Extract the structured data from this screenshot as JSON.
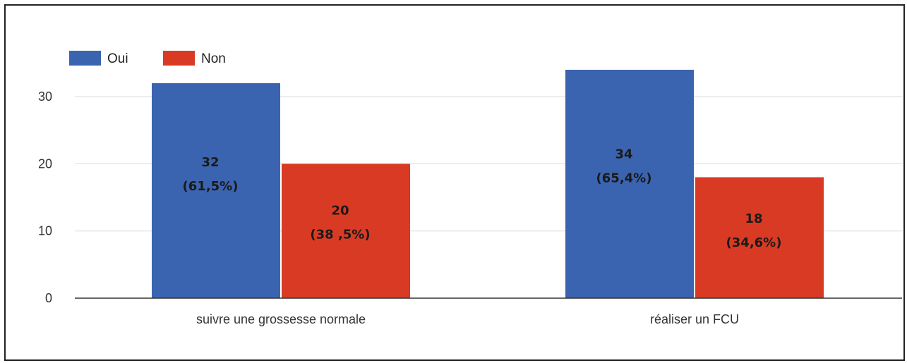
{
  "chart_data": {
    "type": "bar",
    "categories": [
      "suivre une grossesse normale",
      "réaliser un FCU"
    ],
    "series": [
      {
        "name": "Oui",
        "color": "#3b64b0",
        "values": [
          32,
          34
        ],
        "labels": [
          [
            "32",
            "(61,5%)"
          ],
          [
            "34",
            "(65,4%)"
          ]
        ]
      },
      {
        "name": "Non",
        "color": "#d93a24",
        "values": [
          20,
          18
        ],
        "labels": [
          [
            "20",
            "(38 ,5%)"
          ],
          [
            "18",
            "(34,6%)"
          ]
        ]
      }
    ],
    "yticks": [
      "0",
      "10",
      "20",
      "30"
    ],
    "ylim": [
      0,
      35
    ],
    "grid": true,
    "legend_position": "top-left"
  }
}
